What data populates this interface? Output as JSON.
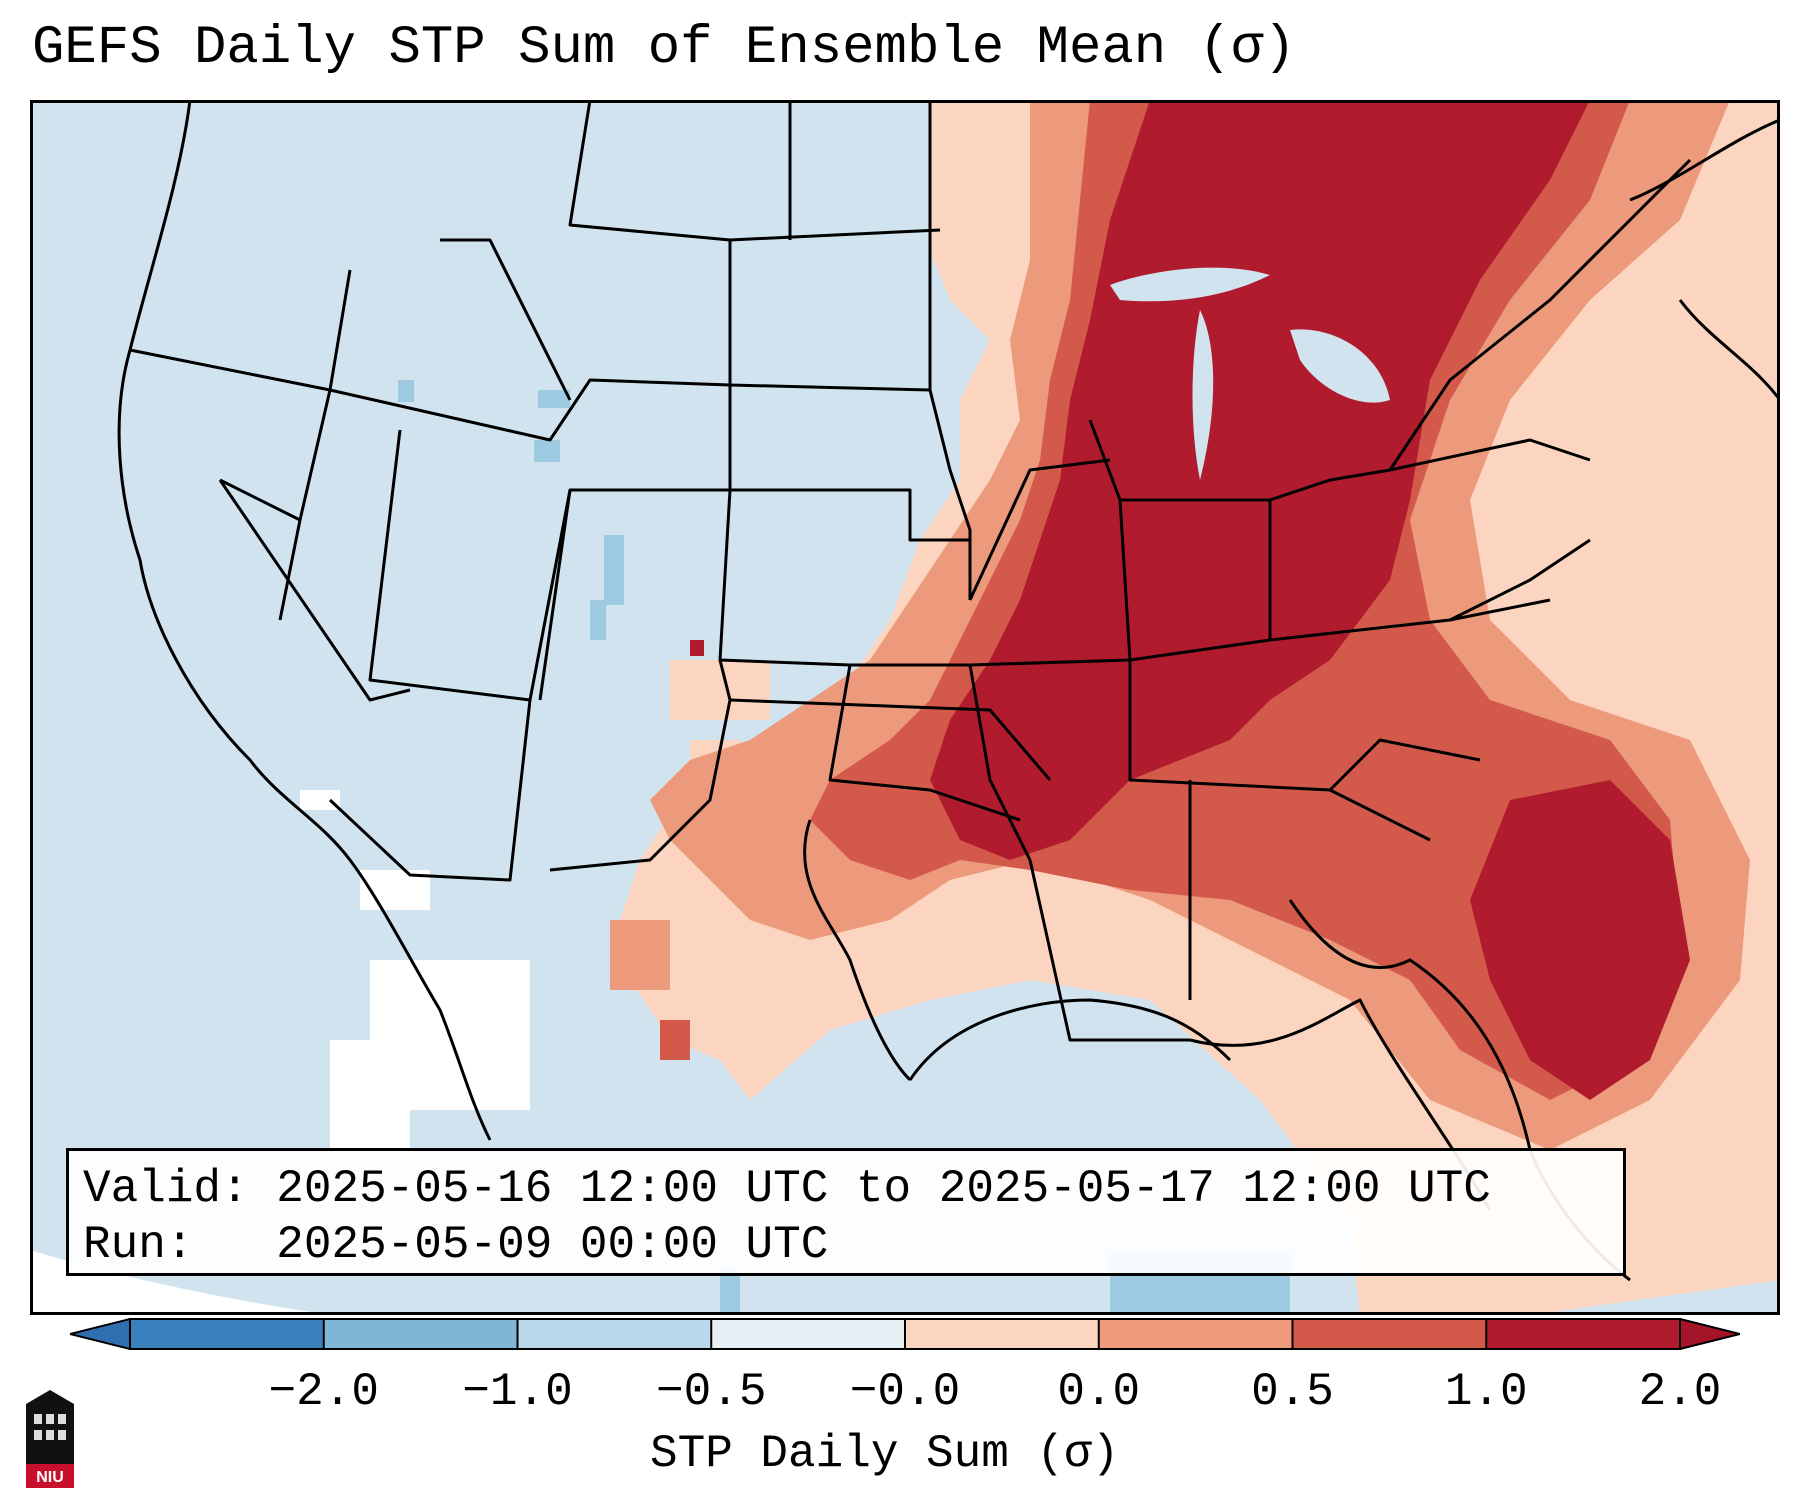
{
  "title": "GEFS Daily STP Sum of Ensemble Mean (σ)",
  "info": {
    "valid_label": "Valid:",
    "valid_value": "2025-05-16 12:00 UTC to 2025-05-17 12:00 UTC",
    "run_label": "Run:",
    "run_value": "2025-05-09 00:00 UTC"
  },
  "colorbar": {
    "label": "STP Daily Sum (σ)",
    "ticks": [
      "−2.0",
      "−1.0",
      "−0.5",
      "−0.0",
      "0.0",
      "0.5",
      "1.0",
      "2.0"
    ],
    "colors": [
      "#3a80bd",
      "#7fb6d8",
      "#b9d8ea",
      "#e8f0f6",
      "#fcd5c0",
      "#ec9a7b",
      "#d35a4a",
      "#b01c2e"
    ],
    "extend_low_color": "#2f6fb0",
    "extend_high_color": "#a5152a"
  },
  "colors": {
    "ocean": "#d0e3ef",
    "land_neutral": "#d0e3ef",
    "light_pos": "#fcd5c0",
    "mid_pos": "#ec9a7b",
    "strong_pos": "#d35a4a",
    "very_strong_pos": "#b01c2e",
    "neg_light": "#9ecae1",
    "white_patch": "#ffffff",
    "border": "#000000"
  },
  "logo": {
    "text": "NIU"
  }
}
